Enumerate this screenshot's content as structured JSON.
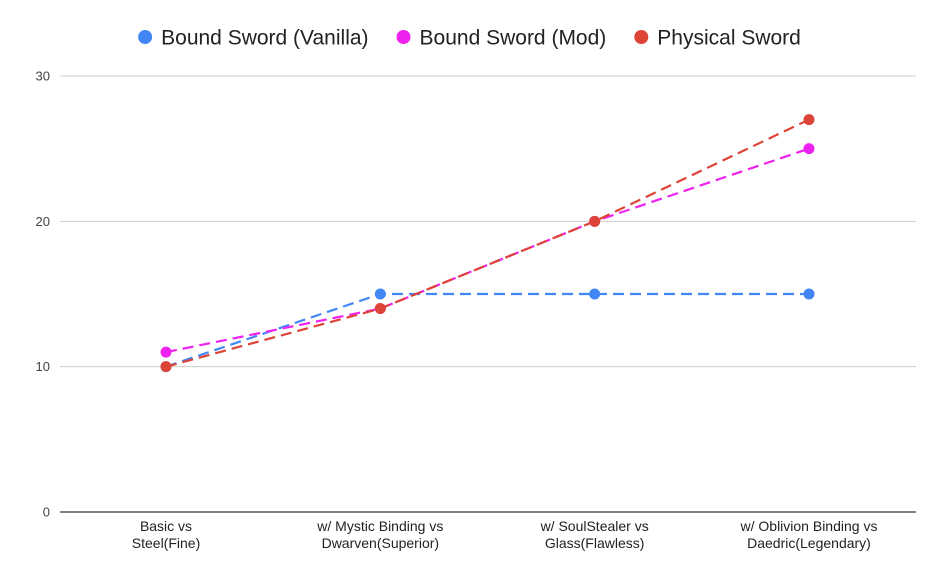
{
  "chart_data": {
    "type": "line",
    "categories": [
      [
        "Basic vs",
        "Steel(Fine)"
      ],
      [
        "w/ Mystic Binding vs",
        "Dwarven(Superior)"
      ],
      [
        "w/ SoulStealer vs",
        "Glass(Flawless)"
      ],
      [
        "w/ Oblivion Binding vs",
        "Daedric(Legendary)"
      ]
    ],
    "series": [
      {
        "name": "Bound Sword (Vanilla)",
        "values": [
          10,
          15,
          15,
          15
        ],
        "color": "#4285f4"
      },
      {
        "name": "Bound Sword (Mod)",
        "values": [
          11,
          14,
          20,
          25
        ],
        "color": "#ee22ee"
      },
      {
        "name": "Physical Sword",
        "values": [
          10,
          14,
          20,
          27
        ],
        "color": "#db4437"
      }
    ],
    "yticks": [
      0,
      10,
      20,
      30
    ],
    "ylim": [
      0,
      30
    ],
    "line_style": "dashed",
    "grid": true,
    "legend_position": "top"
  }
}
